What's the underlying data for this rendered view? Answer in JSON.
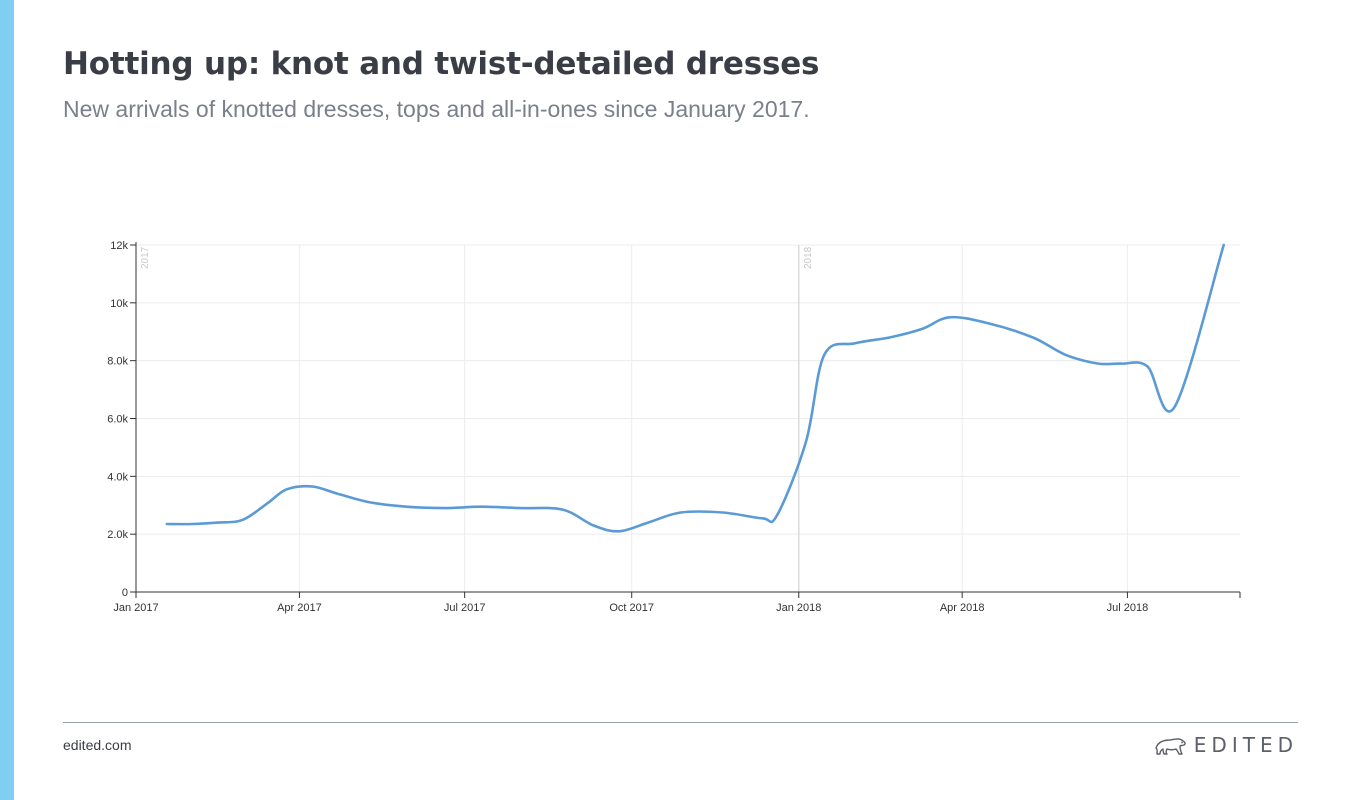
{
  "header": {
    "title": "Hotting up: knot and twist-detailed dresses",
    "subtitle": "New arrivals of knotted dresses, tops and all-in-ones since January 2017."
  },
  "footer": {
    "url": "edited.com",
    "brand": "EDITED",
    "brand_icon": "polar-bear-icon"
  },
  "colors": {
    "accent_bar": "#7ecff3",
    "line": "#5b9bd5"
  },
  "chart_data": {
    "type": "line",
    "title": "",
    "xlabel": "",
    "ylabel": "",
    "ylim": [
      0,
      12000
    ],
    "xlim": [
      "2017-01-01",
      "2018-09-01"
    ],
    "grid": true,
    "yticks": [
      0,
      2000,
      4000,
      6000,
      8000,
      10000,
      12000
    ],
    "ytick_labels": [
      "0",
      "2.0k",
      "4.0k",
      "6.0k",
      "8.0k",
      "10k",
      "12k"
    ],
    "xticks": [
      "2017-01-01",
      "2017-04-01",
      "2017-07-01",
      "2017-10-01",
      "2018-01-01",
      "2018-04-01",
      "2018-07-01"
    ],
    "xtick_labels": [
      "Jan 2017",
      "Apr 2017",
      "Jul 2017",
      "Oct 2017",
      "Jan 2018",
      "Apr 2018",
      "Jul 2018"
    ],
    "year_markers": [
      {
        "date": "2017-01-01",
        "label": "2017"
      },
      {
        "date": "2018-01-01",
        "label": "2018"
      }
    ],
    "series": [
      {
        "name": "",
        "x": [
          "2017-01-18",
          "2017-02-01",
          "2017-02-15",
          "2017-03-01",
          "2017-03-15",
          "2017-03-25",
          "2017-04-08",
          "2017-04-22",
          "2017-05-10",
          "2017-05-30",
          "2017-06-20",
          "2017-07-10",
          "2017-08-01",
          "2017-08-24",
          "2017-09-10",
          "2017-09-24",
          "2017-10-10",
          "2017-10-28",
          "2017-11-20",
          "2017-12-12",
          "2017-12-20",
          "2018-01-05",
          "2018-01-15",
          "2018-02-01",
          "2018-02-20",
          "2018-03-10",
          "2018-03-25",
          "2018-04-15",
          "2018-05-10",
          "2018-05-28",
          "2018-06-15",
          "2018-06-28",
          "2018-07-12",
          "2018-07-27",
          "2018-08-23"
        ],
        "values": [
          2350,
          2350,
          2400,
          2500,
          3100,
          3550,
          3650,
          3400,
          3100,
          2950,
          2900,
          2950,
          2900,
          2850,
          2300,
          2100,
          2400,
          2750,
          2750,
          2550,
          2650,
          5200,
          8200,
          8600,
          8800,
          9100,
          9500,
          9300,
          8800,
          8200,
          7900,
          7900,
          7800,
          6400,
          12000
        ]
      }
    ]
  }
}
